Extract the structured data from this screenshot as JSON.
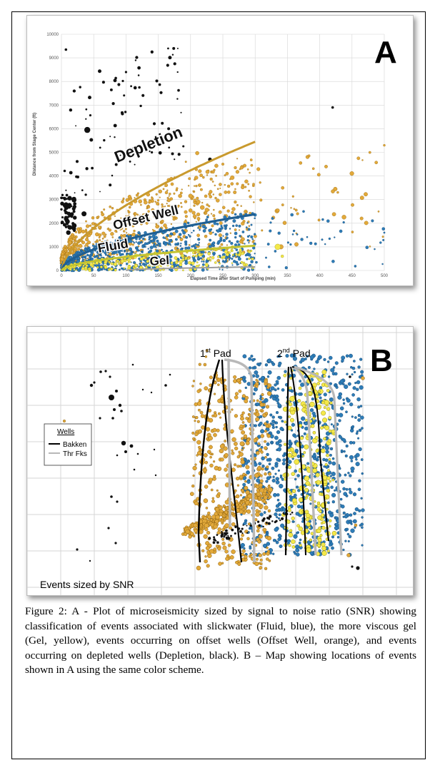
{
  "figure": {
    "caption": "Figure 2:  A - Plot of microseismicity sized by signal to noise ratio (SNR) showing classification of events associated with slickwater (Fluid, blue), the more viscous gel (Gel, yellow), events occurring on offset wells (Offset Well, orange), and events occurring on depleted wells (Depletion, black). B – Map showing locations of events shown in A using the same color scheme."
  },
  "colors": {
    "depletion": "#111111",
    "offset_well": "#e2a93a",
    "fluid": "#2e7db8",
    "gel": "#f4e84a",
    "fit_offset": "#c99a2e",
    "fit_fluid": "#1f5f93",
    "fit_gel": "#c4c430",
    "grid": "#d6d6d6"
  },
  "panel_a": {
    "letter": "A",
    "class_labels": {
      "depletion": "Depletion",
      "offset_well": "Offset Well",
      "fluid": "Fluid",
      "gel": "Gel"
    }
  },
  "panel_b": {
    "letter": "B",
    "pad1_base": "1",
    "pad1_sup": "st",
    "pad1_rest": " Pad",
    "pad2_base": "2",
    "pad2_sup": "nd",
    "pad2_rest": " Pad",
    "legend_title": "Wells",
    "legend_items": [
      {
        "label": "Bakken",
        "color": "#000000"
      },
      {
        "label": "Thr Fks",
        "color": "#b8b8b8"
      }
    ],
    "note": "Events sized by SNR"
  },
  "chart_data": [
    {
      "type": "scatter",
      "title": "",
      "xlabel": "Elapsed Time after Start of Pumping (min)",
      "ylabel": "Distance from Stage Center (ft)",
      "xlim": [
        0,
        500
      ],
      "ylim": [
        0,
        10000
      ],
      "x_ticks": [
        "0",
        "50",
        "100",
        "150",
        "200",
        "250",
        "300",
        "350",
        "400",
        "450",
        "500"
      ],
      "y_ticks": [
        "0",
        "1000",
        "2000",
        "3000",
        "4000",
        "5000",
        "6000",
        "7000",
        "8000",
        "9000",
        "10000"
      ],
      "grid": true,
      "series": [
        {
          "name": "Depletion",
          "color": "#111111",
          "count_estimate": 160,
          "x_range": [
            0,
            300
          ],
          "y_range": [
            1500,
            9400
          ]
        },
        {
          "name": "Offset Well",
          "color": "#e2a93a",
          "count_estimate": 900,
          "x_range": [
            0,
            500
          ],
          "y_range": [
            200,
            5500
          ]
        },
        {
          "name": "Fluid",
          "color": "#2e7db8",
          "count_estimate": 900,
          "x_range": [
            0,
            500
          ],
          "y_range": [
            0,
            2500
          ]
        },
        {
          "name": "Gel",
          "color": "#f4e84a",
          "count_estimate": 300,
          "x_range": [
            0,
            350
          ],
          "y_range": [
            0,
            1100
          ]
        }
      ],
      "fit_curves": [
        {
          "name": "Offset Well",
          "x": [
            0,
            300
          ],
          "y_at_end": 5450
        },
        {
          "name": "Fluid",
          "x": [
            0,
            300
          ],
          "y_at_end": 2380
        },
        {
          "name": "Gel",
          "x": [
            0,
            300
          ],
          "y_at_end": 1050
        },
        {
          "name": "Depletion",
          "x": [
            100,
            300
          ],
          "y_at_end": 150
        }
      ]
    },
    {
      "type": "scatter",
      "title": "",
      "xlabel": "",
      "ylabel": "",
      "grid": true,
      "series": [
        {
          "name": "Depletion",
          "color": "#111111",
          "count_estimate": 90
        },
        {
          "name": "Offset Well",
          "color": "#e2a93a",
          "count_estimate": 650
        },
        {
          "name": "Fluid",
          "color": "#2e7db8",
          "count_estimate": 800
        },
        {
          "name": "Gel",
          "color": "#f4e84a",
          "count_estimate": 260
        }
      ]
    }
  ]
}
